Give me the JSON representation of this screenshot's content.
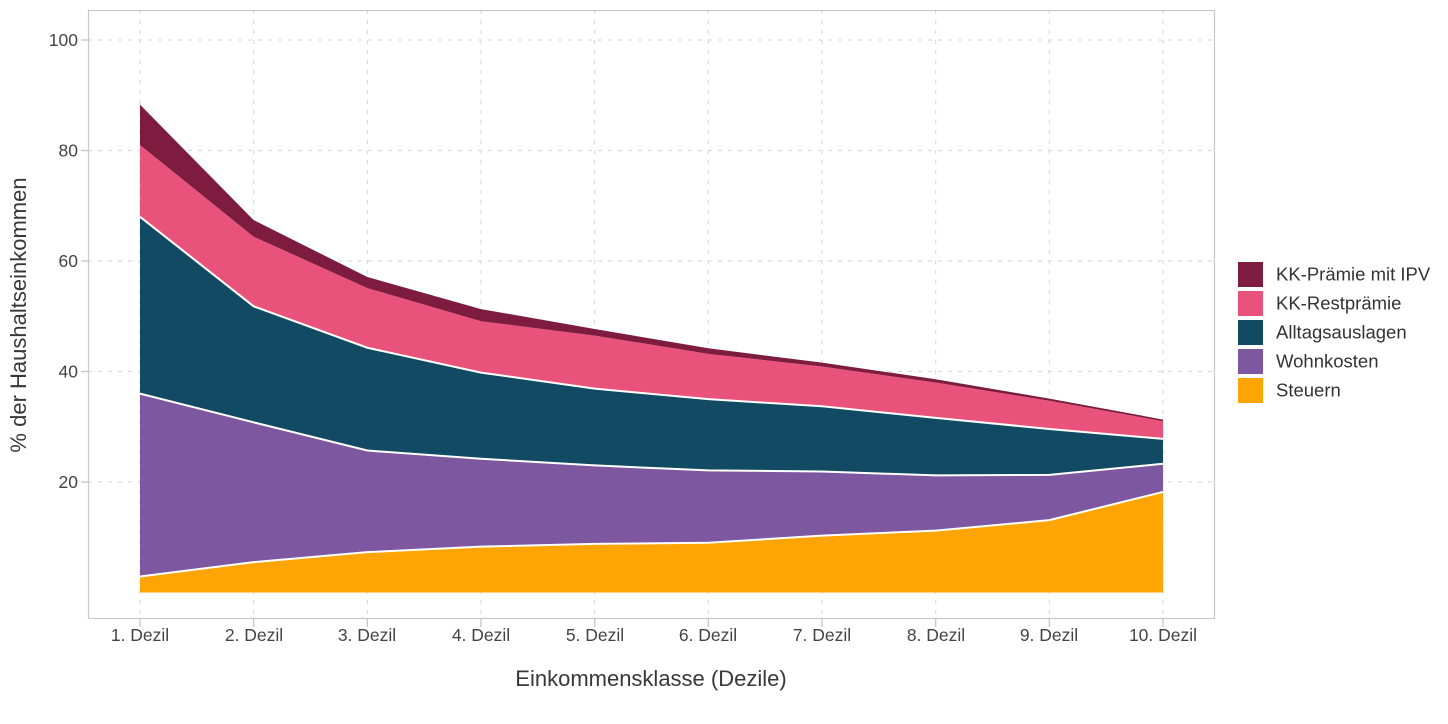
{
  "figure": {
    "background": "#FFFFFF",
    "title": "",
    "y_axis": {
      "title": "% der Haushaltseinkommen",
      "ticks": [
        20,
        40,
        60,
        80,
        100
      ],
      "tick_labels": [
        "20",
        "40",
        "60",
        "80",
        "100"
      ]
    },
    "x_axis": {
      "title": "Einkommensklasse (Dezile)",
      "tick_labels": [
        "1. Dezil",
        "2. Dezil",
        "3. Dezil",
        "4. Dezil",
        "5. Dezil",
        "6. Dezil",
        "7. Dezil",
        "8. Dezil",
        "9. Dezil",
        "10. Dezil"
      ]
    },
    "grid_color": "#DCDCDC",
    "panel_border_color": "#C9C9C9",
    "separator_line_color": "#FFFFFF"
  },
  "chart_data": {
    "type": "area",
    "stacked": true,
    "title": "",
    "xlabel": "Einkommensklasse (Dezile)",
    "ylabel": "% der Haushaltseinkommen",
    "categories": [
      "1. Dezil",
      "2. Dezil",
      "3. Dezil",
      "4. Dezil",
      "5. Dezil",
      "6. Dezil",
      "7. Dezil",
      "8. Dezil",
      "9. Dezil",
      "10. Dezil"
    ],
    "stack_order": "first series listed is the top of the stack; last series (Steuern) is the bottom",
    "series": [
      {
        "name": "KK-Prämie mit IPV",
        "color": "#7D1C3E",
        "values": [
          7.3,
          3.0,
          2.0,
          2.2,
          1.2,
          1.0,
          0.7,
          0.6,
          0.4,
          0.3
        ]
      },
      {
        "name": "KK-Restprämie",
        "color": "#E9537B",
        "values": [
          13.0,
          12.6,
          10.8,
          9.3,
          9.6,
          8.2,
          7.2,
          6.4,
          5.1,
          3.2
        ]
      },
      {
        "name": "Alltagsauslagen",
        "color": "#124A63",
        "values": [
          32.0,
          21.0,
          18.6,
          15.6,
          13.9,
          12.9,
          11.8,
          10.4,
          8.3,
          4.5
        ]
      },
      {
        "name": "Wohnkosten",
        "color": "#7D57A0",
        "values": [
          33.1,
          25.3,
          18.4,
          15.9,
          14.2,
          13.1,
          11.6,
          10.0,
          8.2,
          5.1
        ]
      },
      {
        "name": "Steuern",
        "color": "#FFA405",
        "values": [
          2.9,
          5.5,
          7.3,
          8.3,
          8.8,
          9.0,
          10.3,
          11.2,
          13.1,
          18.2
        ]
      }
    ],
    "ylim": [
      0,
      105
    ],
    "grid": "dashed, horizontal at 20/40/60/80/100 and vertical at each decile",
    "legend_position": "right, vertically centered"
  }
}
